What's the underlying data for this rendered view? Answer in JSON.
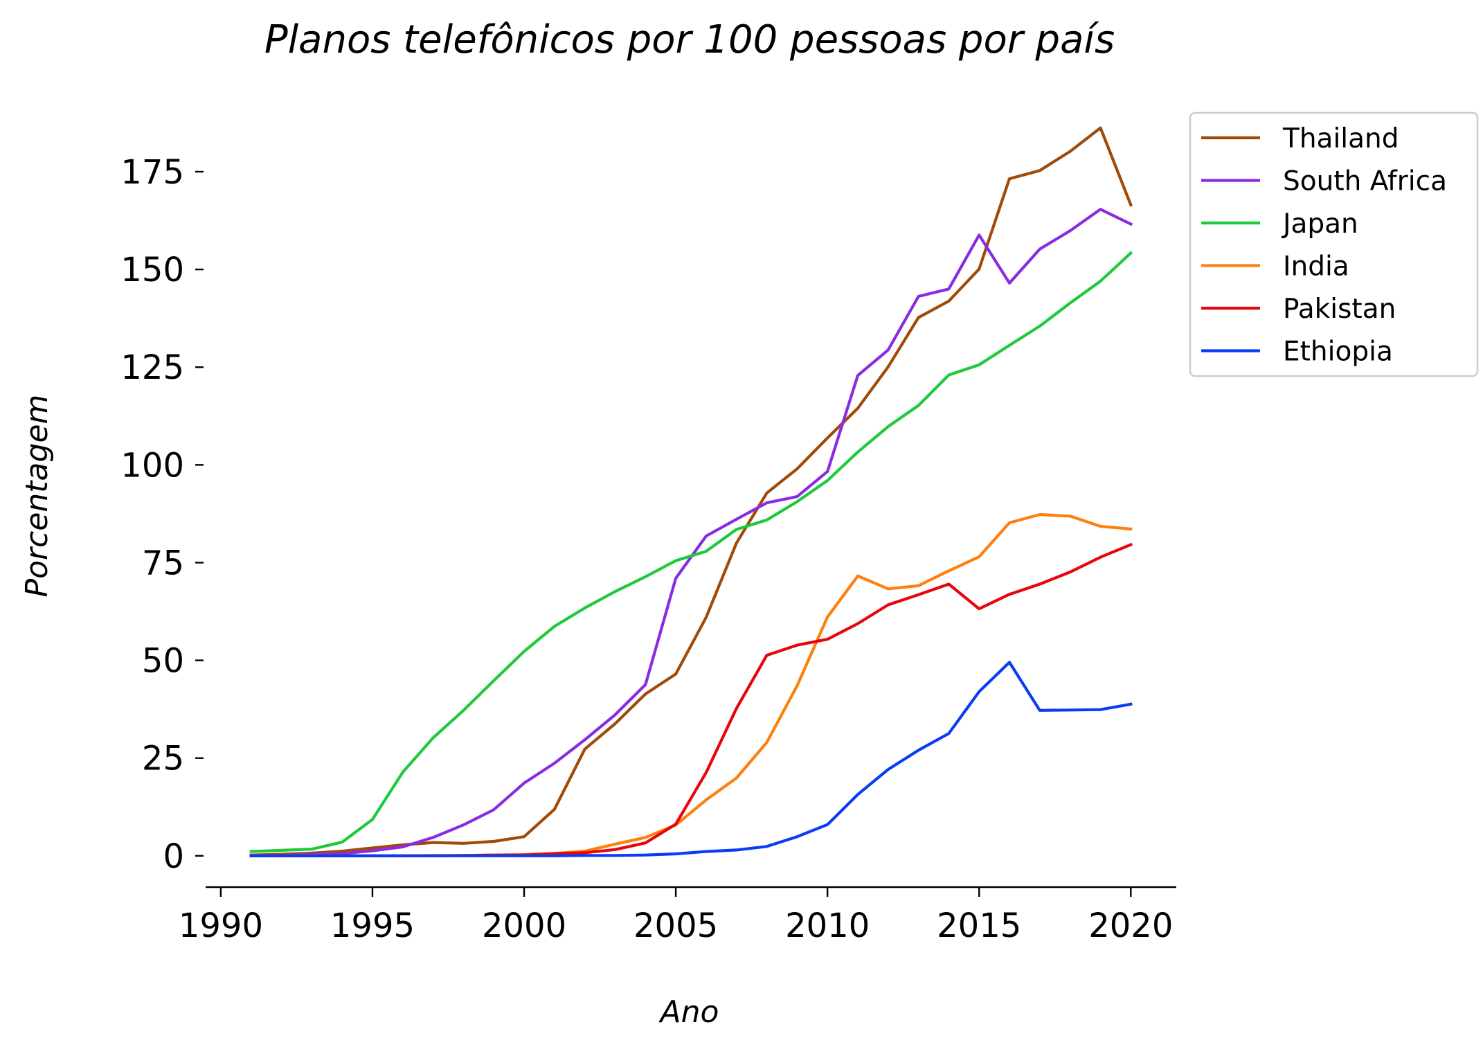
{
  "chart_data": {
    "type": "line",
    "title": "Planos telefônicos por 100 pessoas por país",
    "xlabel": "Ano",
    "ylabel": "Porcentagem",
    "xlim": [
      1989.5,
      2021.5
    ],
    "ylim": [
      -8,
      192
    ],
    "xticks": [
      1990,
      1995,
      2000,
      2005,
      2010,
      2015,
      2020
    ],
    "xtick_labels": [
      "1990",
      "1995",
      "2000",
      "2005",
      "2010",
      "2015",
      "2020"
    ],
    "yticks": [
      0,
      25,
      50,
      75,
      100,
      125,
      150,
      175
    ],
    "ytick_labels": [
      "0",
      "25",
      "50",
      "75",
      "100",
      "125",
      "150",
      "175"
    ],
    "grid": false,
    "legend_position": "outside-top-right",
    "x": [
      1991,
      1992,
      1993,
      1994,
      1995,
      1996,
      1997,
      1998,
      1999,
      2000,
      2001,
      2002,
      2003,
      2004,
      2005,
      2006,
      2007,
      2008,
      2009,
      2010,
      2011,
      2012,
      2013,
      2014,
      2015,
      2016,
      2017,
      2018,
      2019,
      2020
    ],
    "series": [
      {
        "name": "Thailand",
        "color": "#a04a08",
        "values": [
          0.2,
          0.4,
          0.7,
          1.2,
          2.0,
          2.8,
          3.4,
          3.2,
          3.7,
          4.9,
          11.9,
          27.3,
          33.8,
          41.4,
          46.5,
          61.0,
          80.0,
          92.8,
          99.0,
          106.9,
          114.5,
          125.1,
          137.7,
          141.9,
          150.1,
          173.2,
          175.3,
          180.2,
          186.2,
          166.5
        ]
      },
      {
        "name": "South Africa",
        "color": "#8a2be2",
        "values": [
          0.0,
          0.1,
          0.3,
          0.6,
          1.3,
          2.3,
          4.7,
          7.9,
          11.8,
          18.6,
          23.7,
          29.7,
          36.1,
          43.8,
          71.0,
          81.8,
          86.1,
          90.3,
          91.9,
          98.3,
          122.9,
          129.4,
          143.1,
          145.0,
          158.8,
          146.5,
          155.2,
          159.9,
          165.4,
          161.6
        ]
      },
      {
        "name": "Japan",
        "color": "#1ec93c",
        "values": [
          1.1,
          1.4,
          1.7,
          3.5,
          9.3,
          21.4,
          30.2,
          37.2,
          44.8,
          52.3,
          58.7,
          63.4,
          67.6,
          71.4,
          75.5,
          77.9,
          83.5,
          85.9,
          90.6,
          96.0,
          103.3,
          109.8,
          115.2,
          123.0,
          125.6,
          130.6,
          135.5,
          141.4,
          147.0,
          154.2
        ]
      },
      {
        "name": "India",
        "color": "#ff7f0e",
        "values": [
          0.0,
          0.0,
          0.0,
          0.0,
          0.0,
          0.0,
          0.1,
          0.1,
          0.2,
          0.3,
          0.6,
          1.2,
          3.0,
          4.7,
          7.9,
          14.3,
          19.9,
          29.0,
          43.5,
          61.1,
          71.6,
          68.3,
          69.1,
          72.9,
          76.5,
          85.2,
          87.3,
          86.9,
          84.3,
          83.6
        ]
      },
      {
        "name": "Pakistan",
        "color": "#e8040c",
        "values": [
          0.0,
          0.0,
          0.0,
          0.0,
          0.0,
          0.0,
          0.0,
          0.1,
          0.2,
          0.2,
          0.6,
          0.8,
          1.6,
          3.3,
          8.1,
          21.3,
          37.7,
          51.3,
          53.9,
          55.4,
          59.4,
          64.2,
          66.8,
          69.5,
          63.2,
          66.9,
          69.5,
          72.6,
          76.4,
          79.6
        ]
      },
      {
        "name": "Ethiopia",
        "color": "#0a3cf5",
        "values": [
          0.0,
          0.0,
          0.0,
          0.0,
          0.0,
          0.0,
          0.0,
          0.0,
          0.0,
          0.0,
          0.0,
          0.1,
          0.1,
          0.2,
          0.5,
          1.1,
          1.5,
          2.4,
          4.9,
          8.0,
          15.7,
          22.1,
          27.0,
          31.3,
          42.0,
          49.5,
          37.2,
          37.3,
          37.4,
          38.8
        ]
      }
    ]
  }
}
